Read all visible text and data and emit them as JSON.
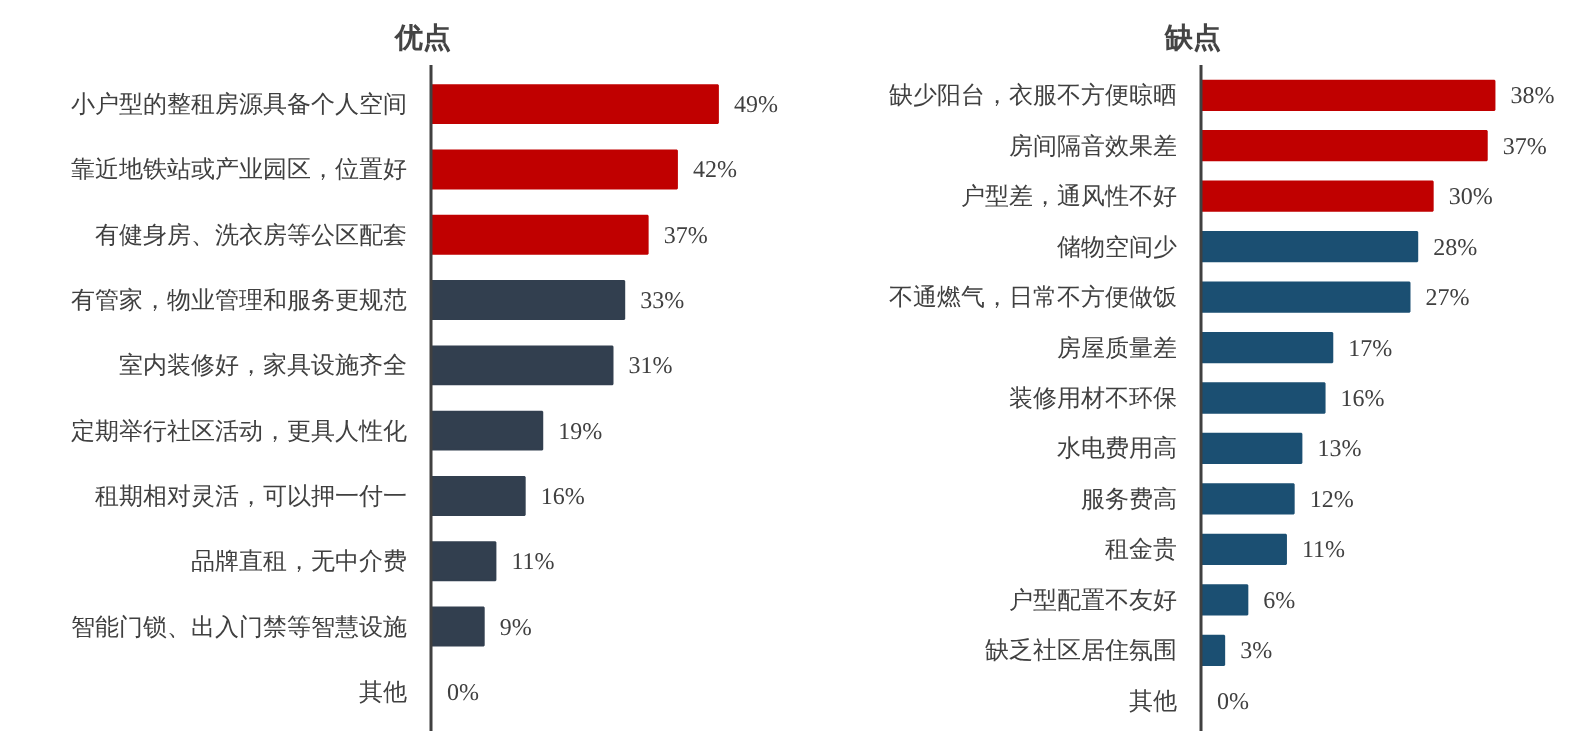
{
  "chart_data": [
    {
      "type": "bar",
      "orientation": "horizontal",
      "title": "优点",
      "grid": false,
      "categories": [
        "小户型的整租房源具备个人空间",
        "靠近地铁站或产业园区，位置好",
        "有健身房、洗衣房等公区配套",
        "有管家，物业管理和服务更规范",
        "室内装修好，家具设施齐全",
        "定期举行社区活动，更具人性化",
        "租期相对灵活，可以押一付一",
        "品牌直租，无中介费",
        "智能门锁、出入门禁等智慧设施",
        "其他"
      ],
      "values": [
        49,
        42,
        37,
        33,
        31,
        19,
        16,
        11,
        9,
        0
      ],
      "colors": [
        "#c00000",
        "#c00000",
        "#c00000",
        "#323f4f",
        "#323f4f",
        "#323f4f",
        "#323f4f",
        "#323f4f",
        "#323f4f",
        "#323f4f"
      ],
      "value_labels": [
        "49%",
        "42%",
        "37%",
        "33%",
        "31%",
        "19%",
        "16%",
        "11%",
        "9%",
        "0%"
      ]
    },
    {
      "type": "bar",
      "orientation": "horizontal",
      "title": "缺点",
      "grid": false,
      "categories": [
        "缺少阳台，衣服不方便晾晒",
        "房间隔音效果差",
        "户型差，通风性不好",
        "储物空间少",
        "不通燃气，日常不方便做饭",
        "房屋质量差",
        "装修用材不环保",
        "水电费用高",
        "服务费高",
        "租金贵",
        "户型配置不友好",
        "缺乏社区居住氛围",
        "其他"
      ],
      "values": [
        38,
        37,
        30,
        28,
        27,
        17,
        16,
        13,
        12,
        11,
        6,
        3,
        0
      ],
      "colors": [
        "#c00000",
        "#c00000",
        "#c00000",
        "#1b4f72",
        "#1b4f72",
        "#1b4f72",
        "#1b4f72",
        "#1b4f72",
        "#1b4f72",
        "#1b4f72",
        "#1b4f72",
        "#1b4f72",
        "#1b4f72"
      ],
      "value_labels": [
        "38%",
        "37%",
        "30%",
        "28%",
        "27%",
        "17%",
        "16%",
        "13%",
        "12%",
        "11%",
        "6%",
        "3%",
        "0%"
      ]
    }
  ]
}
